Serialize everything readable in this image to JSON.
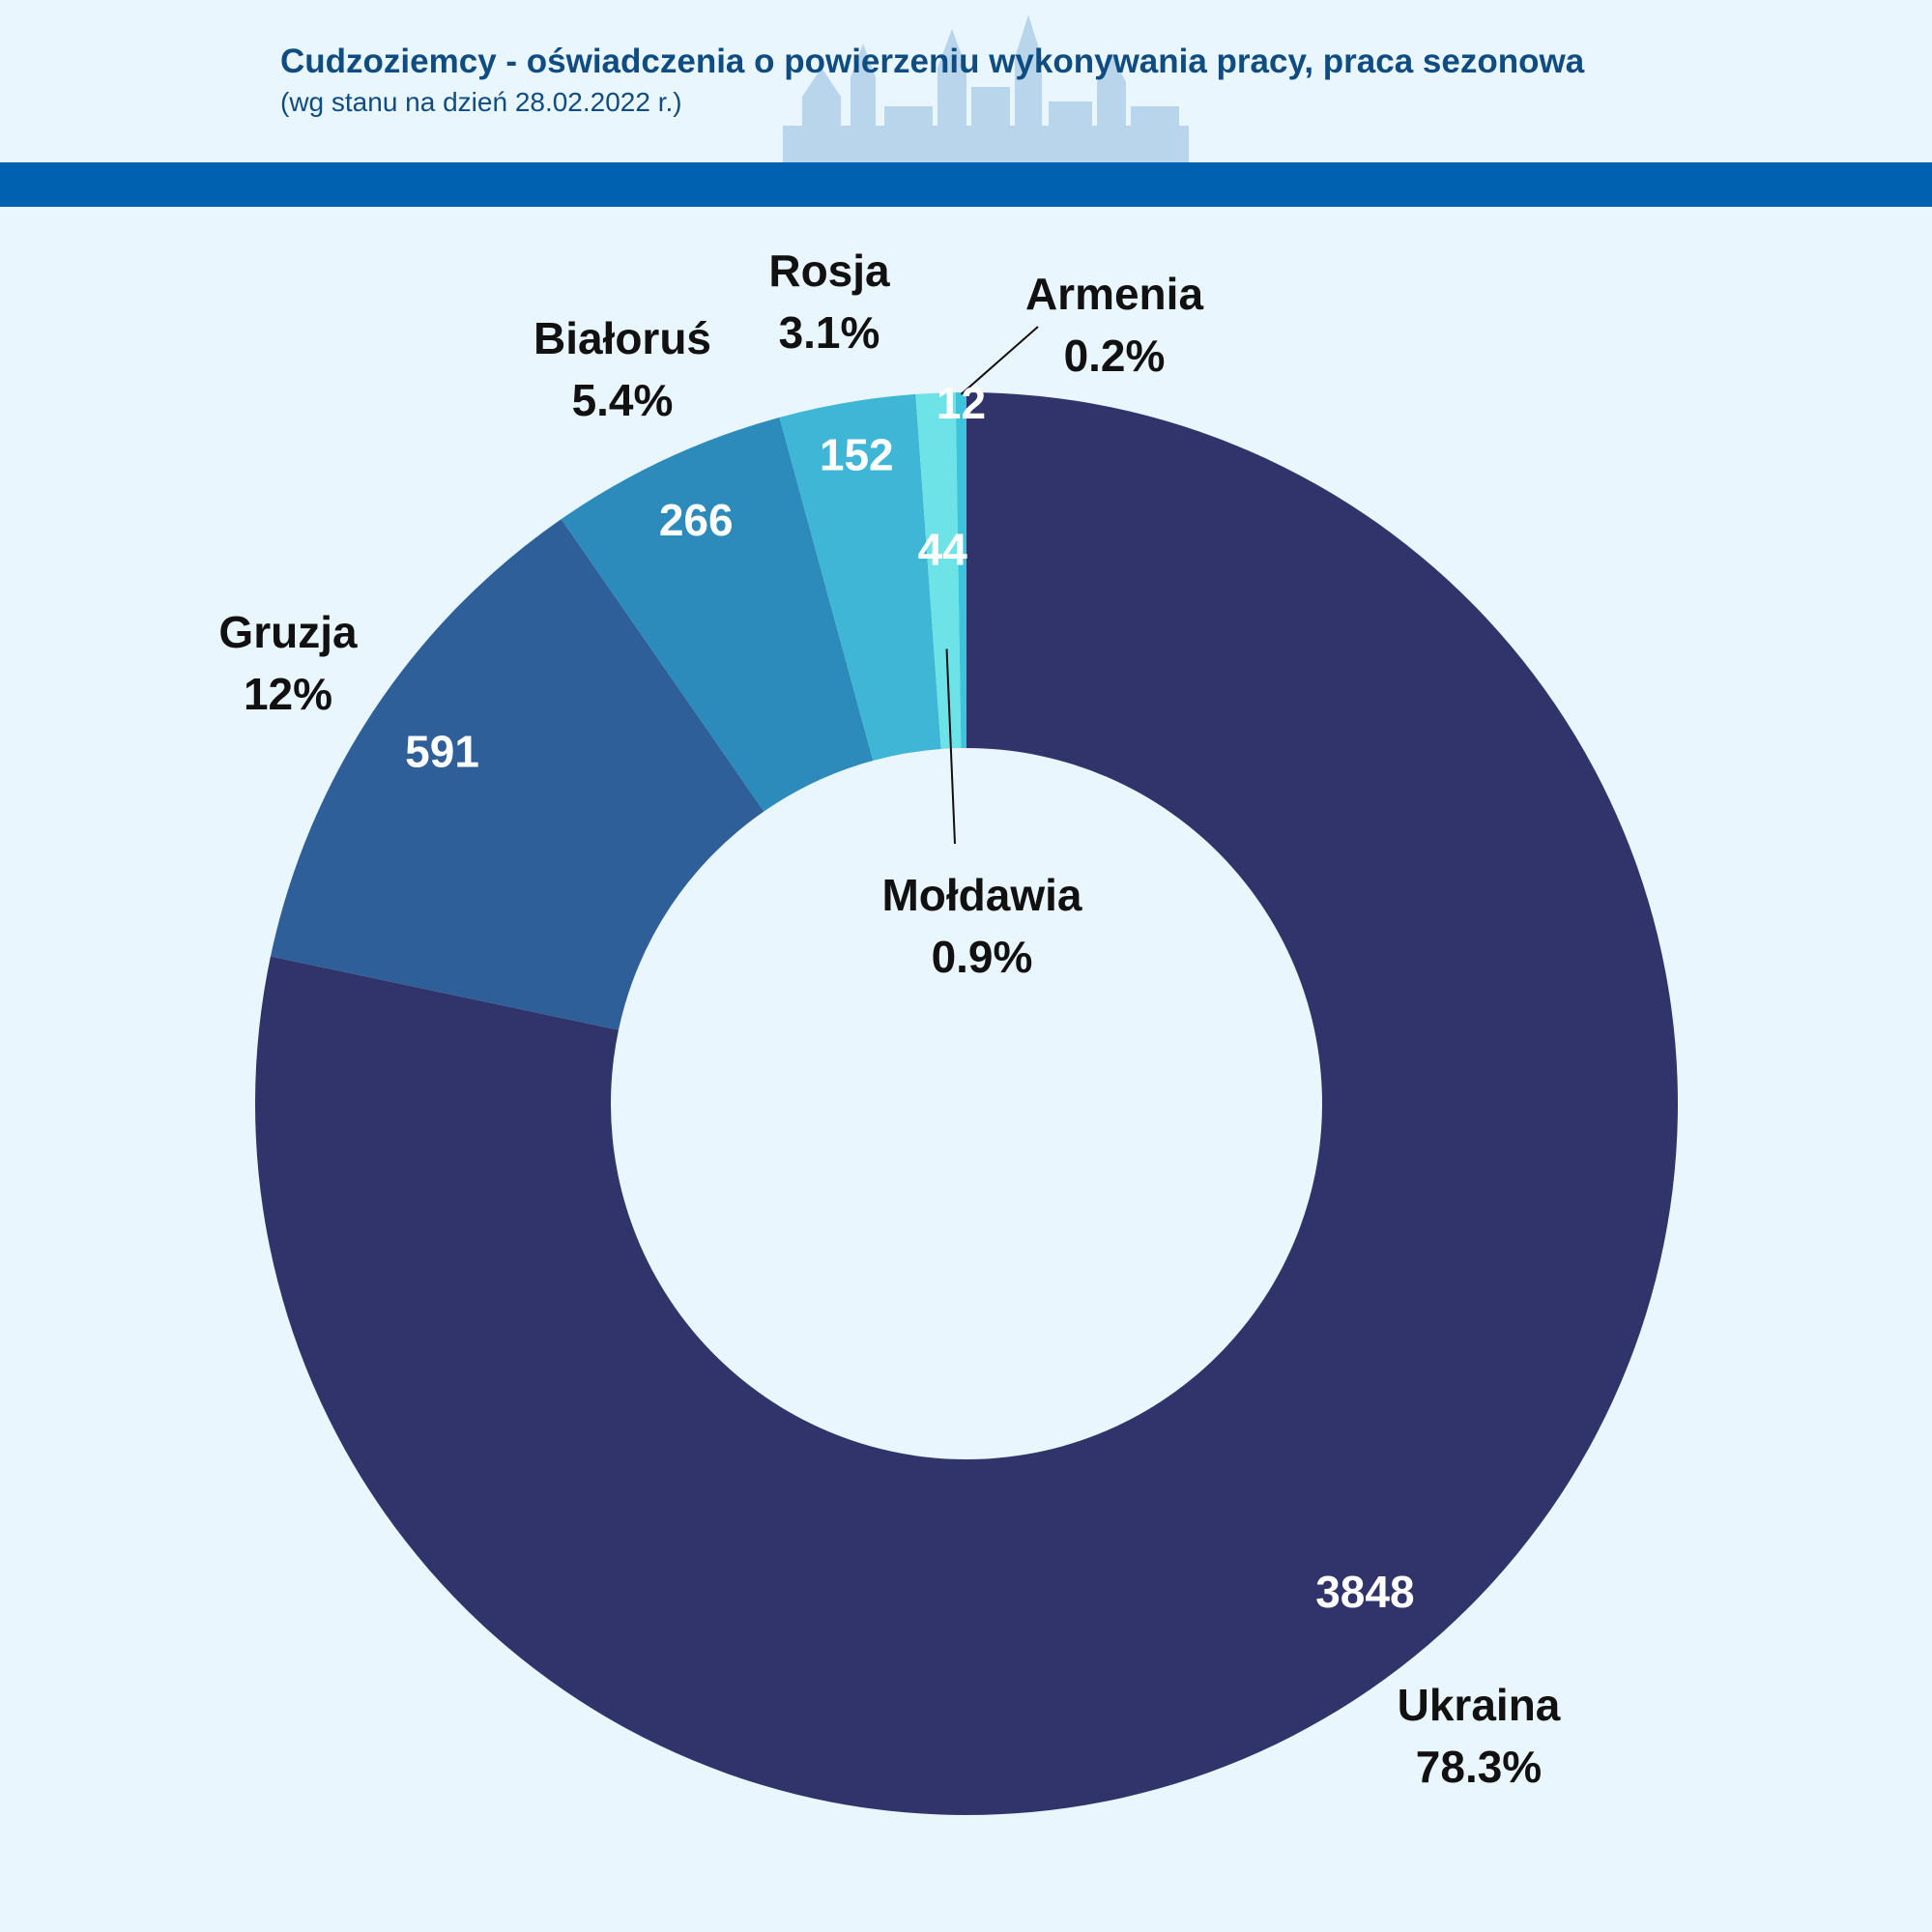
{
  "header": {
    "title": "Cudzoziemcy - oświadczenia o powierzeniu wykonywania pracy, praca sezonowa",
    "subtitle": "(wg stanu na dzień 28.02.2022 r.)"
  },
  "colors": {
    "background": "#eaf6fd",
    "band": "#0061b1",
    "title": "#0f4c81",
    "skyline": "#a9cbe6"
  },
  "chart_data": {
    "type": "pie",
    "donut": true,
    "title": "",
    "legend": "none",
    "start_angle_deg": 0,
    "direction": "clockwise",
    "slices": [
      {
        "label": "Ukraina",
        "value": 3848,
        "value_label": "3848",
        "percent_label": "78.3%",
        "color": "#30346b"
      },
      {
        "label": "Gruzja",
        "value": 591,
        "value_label": "591",
        "percent_label": "12%",
        "color": "#2e5f98"
      },
      {
        "label": "Białoruś",
        "value": 266,
        "value_label": "266",
        "percent_label": "5.4%",
        "color": "#2d8bbb"
      },
      {
        "label": "Rosja",
        "value": 152,
        "value_label": "152",
        "percent_label": "3.1%",
        "color": "#40b6d6"
      },
      {
        "label": "Mołdawia",
        "value": 44,
        "value_label": "44",
        "percent_label": "0.9%",
        "color": "#6de3e8"
      },
      {
        "label": "Armenia",
        "value": 12,
        "value_label": "12",
        "percent_label": "0.2%",
        "color": "#3cc4dc"
      }
    ]
  }
}
